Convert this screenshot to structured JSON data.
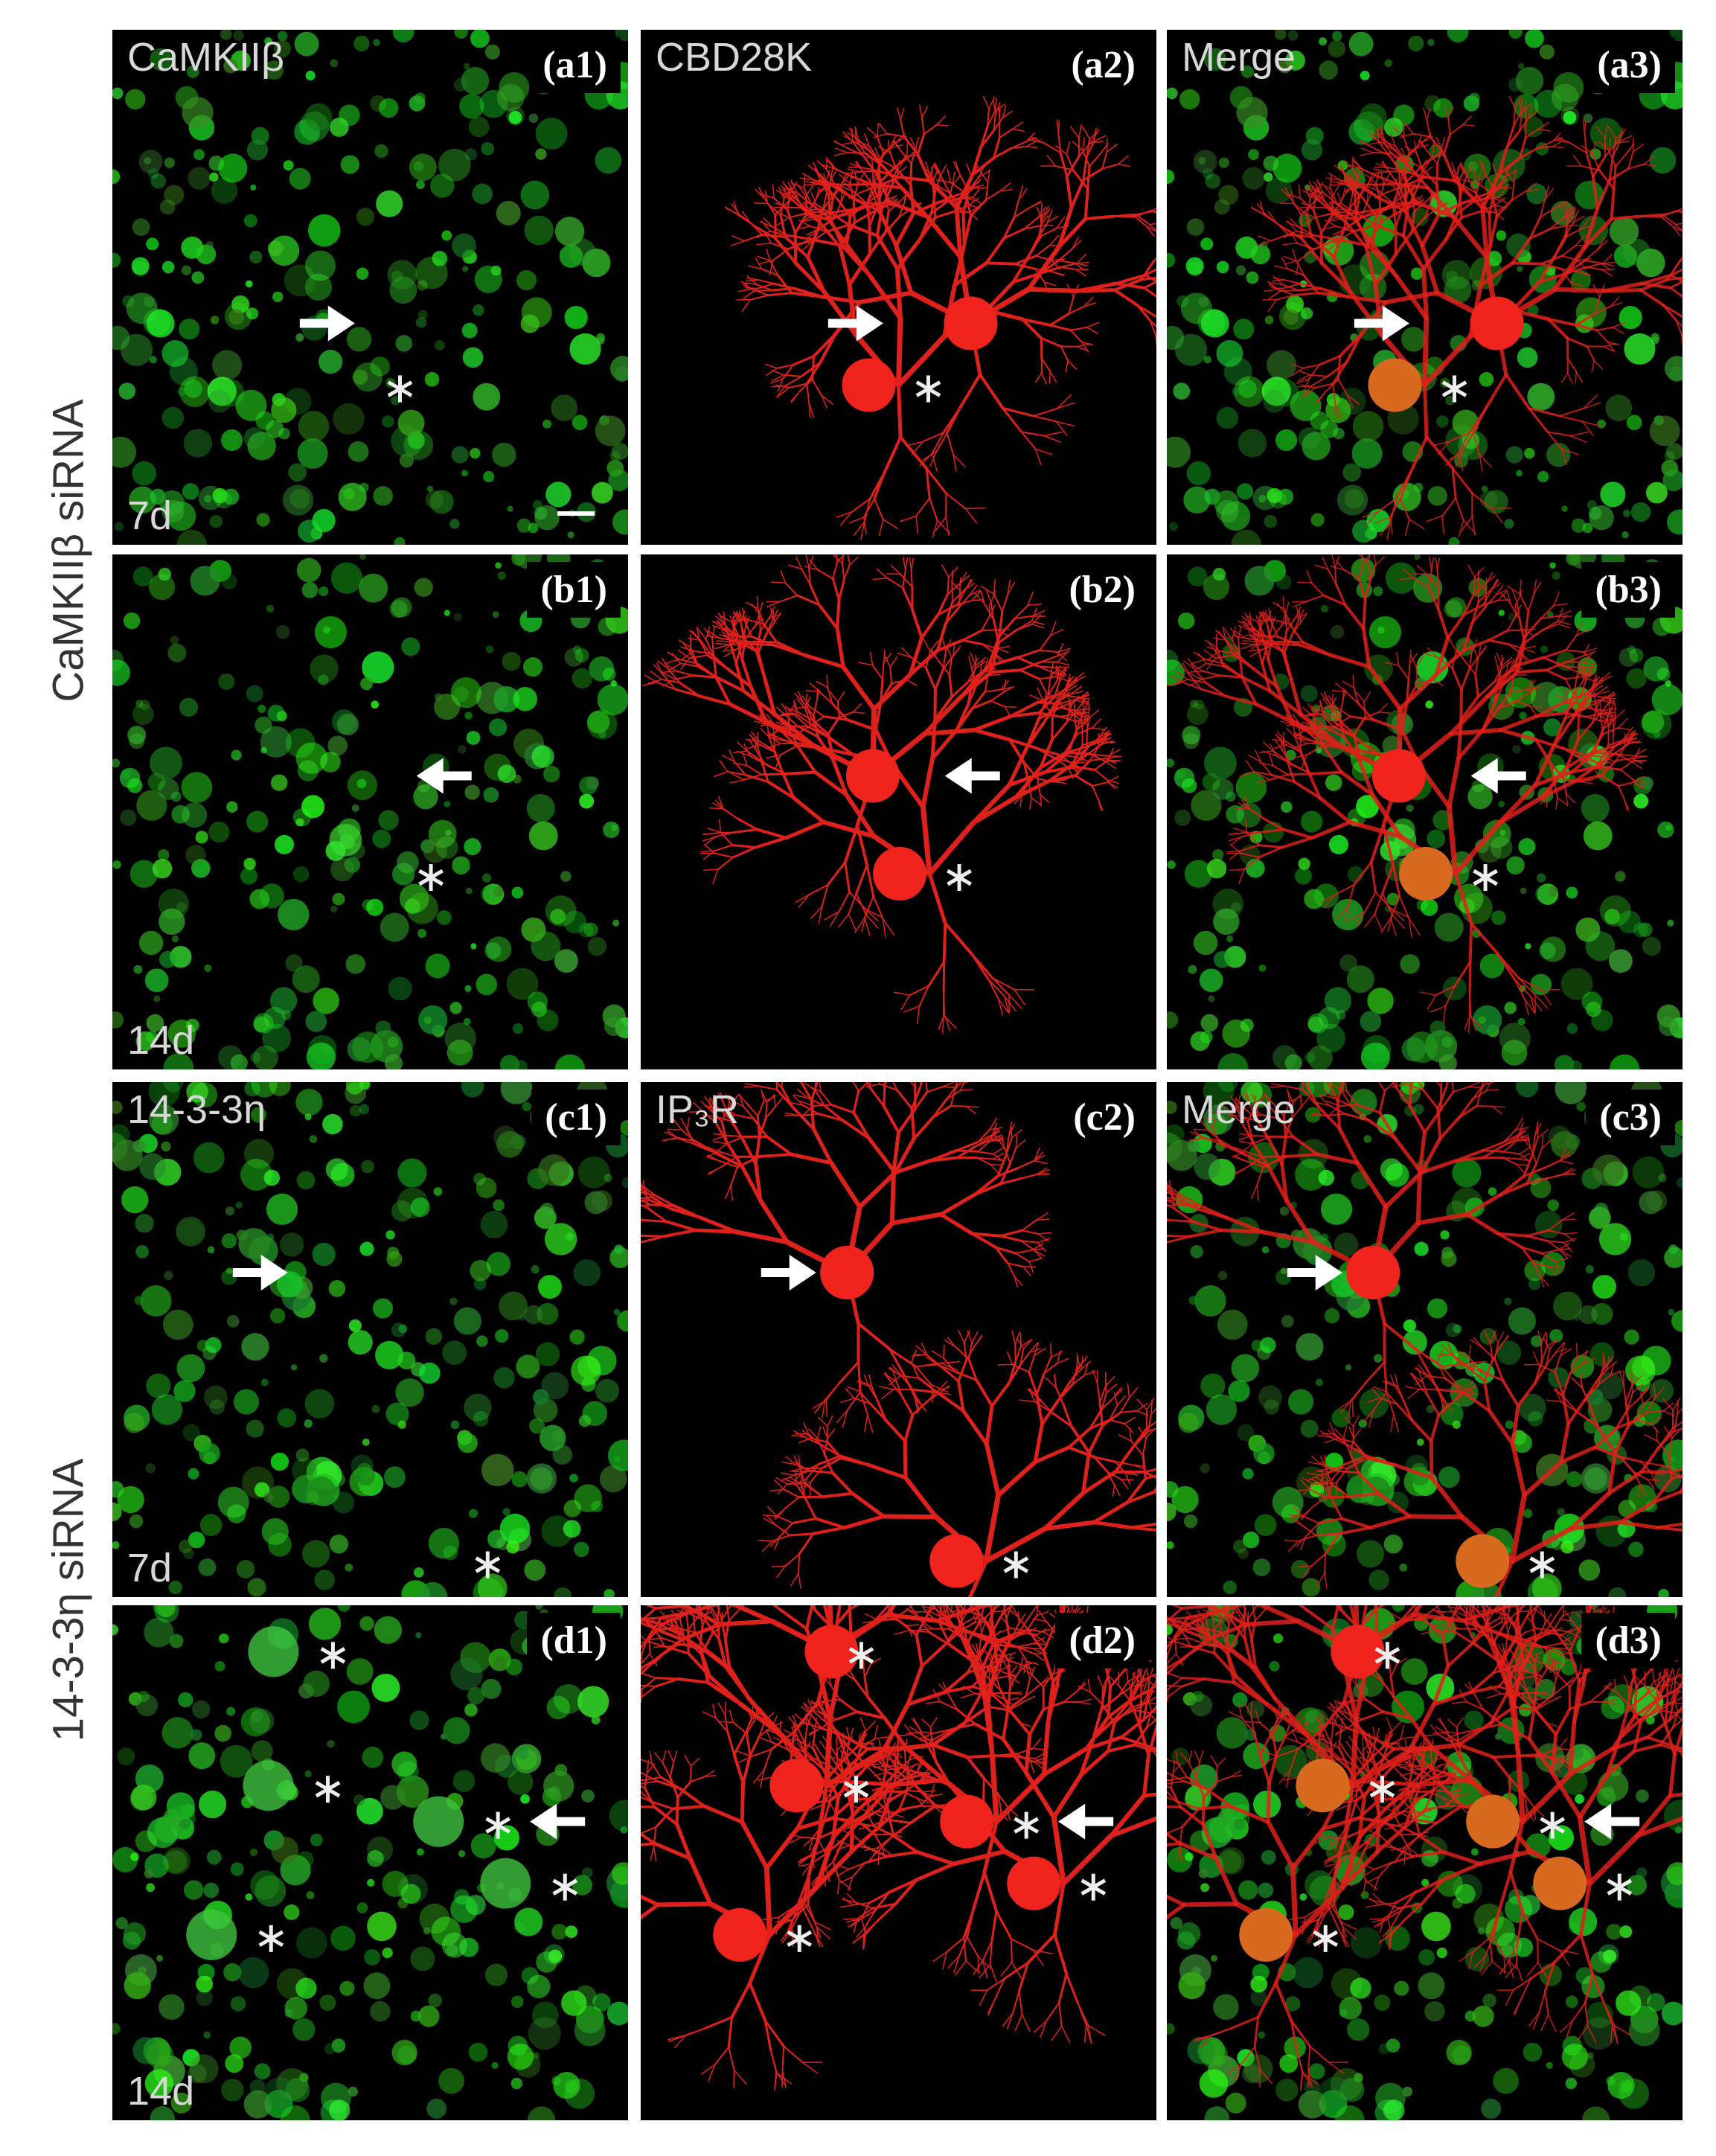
{
  "row_groups": [
    {
      "label": "CaMKIIβ siRNA"
    },
    {
      "label": "14-3-3η siRNA"
    }
  ],
  "panels": [
    [
      {
        "channel": "CaMKIIβ",
        "id": "(a1)",
        "day": "7d"
      },
      {
        "channel": "CBD28K",
        "id": "(a2)"
      },
      {
        "channel": "Merge",
        "id": "(a3)"
      }
    ],
    [
      {
        "id": "(b1)",
        "day": "14d"
      },
      {
        "id": "(b2)"
      },
      {
        "id": "(b3)"
      }
    ],
    [
      {
        "channel": "14-3-3η",
        "id": "(c1)",
        "day": "7d"
      },
      {
        "channel": "IP₃R",
        "id": "(c2)"
      },
      {
        "channel": "Merge",
        "id": "(c3)"
      }
    ],
    [
      {
        "id": "(d1)",
        "day": "14d"
      },
      {
        "id": "(d2)"
      },
      {
        "id": "(d3)"
      }
    ]
  ]
}
